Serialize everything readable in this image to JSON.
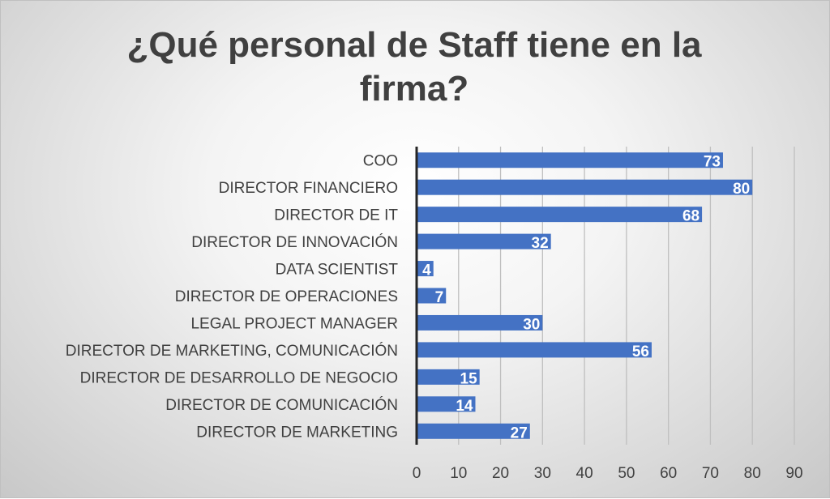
{
  "chart_data": {
    "type": "bar",
    "orientation": "horizontal",
    "title": "¿Qué personal de Staff tiene en la firma?",
    "categories": [
      "COO",
      "DIRECTOR FINANCIERO",
      "DIRECTOR DE IT",
      "DIRECTOR DE INNOVACIÓN",
      "DATA SCIENTIST",
      "DIRECTOR DE OPERACIONES",
      "LEGAL PROJECT MANAGER",
      "DIRECTOR  DE MARKETING, COMUNICACIÓN",
      "DIRECTOR DE DESARROLLO DE NEGOCIO",
      "DIRECTOR DE COMUNICACIÓN",
      "DIRECTOR DE MARKETING"
    ],
    "values": [
      73,
      80,
      68,
      32,
      4,
      7,
      30,
      56,
      15,
      14,
      27
    ],
    "xlim": [
      0,
      90
    ],
    "ticks": [
      0,
      10,
      20,
      30,
      40,
      50,
      60,
      70,
      80,
      90
    ],
    "grid": "vertical",
    "legend": "none",
    "bar_color": "#4472C4",
    "data_label_color": "#FFFFFF"
  }
}
